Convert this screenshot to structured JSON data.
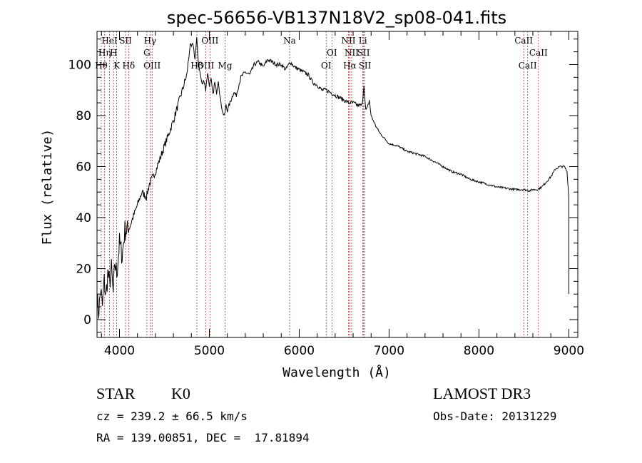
{
  "chart_data": {
    "type": "line",
    "title": "spec-56656-VB137N18V2_sp08-041.fits",
    "xlabel": "Wavelength (Å)",
    "ylabel": "Flux (relative)",
    "xlim": [
      3750,
      9100
    ],
    "ylim": [
      -7,
      113
    ],
    "xticks": [
      4000,
      5000,
      6000,
      7000,
      8000,
      9000
    ],
    "yticks": [
      0,
      20,
      40,
      60,
      80,
      100
    ],
    "x_tick_labels": [
      "4000",
      "5000",
      "6000",
      "7000",
      "8000",
      "9000"
    ],
    "y_tick_labels": [
      "0",
      "20",
      "40",
      "60",
      "80",
      "100"
    ],
    "series": [
      {
        "name": "flux",
        "x": [
          3750,
          3770,
          3790,
          3810,
          3830,
          3850,
          3870,
          3890,
          3910,
          3930,
          3950,
          3970,
          4000,
          4030,
          4060,
          4100,
          4150,
          4200,
          4250,
          4300,
          4330,
          4360,
          4400,
          4450,
          4500,
          4550,
          4600,
          4650,
          4700,
          4750,
          4780,
          4800,
          4820,
          4840,
          4860,
          4880,
          4900,
          4920,
          4940,
          4960,
          4980,
          5000,
          5020,
          5040,
          5060,
          5080,
          5100,
          5120,
          5150,
          5170,
          5185,
          5200,
          5230,
          5270,
          5300,
          5350,
          5400,
          5450,
          5500,
          5550,
          5600,
          5650,
          5700,
          5750,
          5800,
          5850,
          5900,
          5950,
          6000,
          6050,
          6100,
          6150,
          6200,
          6250,
          6300,
          6350,
          6400,
          6450,
          6500,
          6550,
          6600,
          6650,
          6700,
          6720,
          6740,
          6760,
          6780,
          6800,
          6850,
          6900,
          6950,
          7000,
          7100,
          7200,
          7300,
          7400,
          7500,
          7600,
          7700,
          7800,
          7900,
          8000,
          8100,
          8200,
          8300,
          8400,
          8500,
          8560,
          8600,
          8650,
          8700,
          8750,
          8800,
          8850,
          8900,
          8950,
          8980,
          9000,
          9000
        ],
        "y": [
          8,
          3,
          12,
          5,
          15,
          9,
          18,
          14,
          20,
          10,
          22,
          18,
          30,
          25,
          35,
          35,
          40,
          45,
          50,
          48,
          53,
          55,
          58,
          63,
          68,
          73,
          78,
          84,
          90,
          96,
          106,
          107,
          108,
          102,
          110,
          100,
          96,
          92,
          94,
          90,
          97,
          92,
          94,
          88,
          93,
          89,
          94,
          87,
          81,
          80,
          84,
          82,
          85,
          89,
          88,
          95,
          97,
          96,
          100,
          101,
          99,
          102,
          101,
          100,
          100,
          98,
          101,
          99,
          98,
          97,
          96,
          93,
          92,
          90,
          90,
          89,
          88,
          87,
          86,
          85,
          85,
          84,
          84,
          92,
          82,
          83,
          86,
          80,
          76,
          73,
          71,
          69,
          68,
          66,
          65,
          64,
          62,
          60,
          58,
          57,
          55,
          54,
          53,
          52,
          51.5,
          51,
          51,
          50.5,
          51,
          51,
          52,
          54,
          56,
          59,
          60,
          60,
          58,
          48,
          10
        ]
      }
    ],
    "spectral_lines": [
      {
        "label": "Hθ",
        "wavelength": 3797,
        "row": 3
      },
      {
        "label": "Hη",
        "wavelength": 3835,
        "row": 1
      },
      {
        "label": "HeI",
        "wavelength": 3889,
        "row": 0
      },
      {
        "label": "H",
        "wavelength": 3934,
        "row": 1
      },
      {
        "label": "K",
        "wavelength": 3969,
        "row": 2
      },
      {
        "label": "SII",
        "wavelength": 4068,
        "row": 0
      },
      {
        "label": "Hδ",
        "wavelength": 4102,
        "row": 3
      },
      {
        "label": "Hγ",
        "wavelength": 4340,
        "row": 0
      },
      {
        "label": "G",
        "wavelength": 4305,
        "row": 1
      },
      {
        "label": "OIII",
        "wavelength": 4363,
        "row": 3
      },
      {
        "label": "Hβ",
        "wavelength": 4861,
        "row": 2
      },
      {
        "label": "OIII",
        "wavelength": 4959,
        "row": 3
      },
      {
        "label": "OIII",
        "wavelength": 5007,
        "row": 0
      },
      {
        "label": "Mg",
        "wavelength": 5175,
        "row": 2
      },
      {
        "label": "Na",
        "wavelength": 5893,
        "row": 0
      },
      {
        "label": "OI",
        "wavelength": 6300,
        "row": 3
      },
      {
        "label": "OI",
        "wavelength": 6364,
        "row": 1
      },
      {
        "label": "NII",
        "wavelength": 6548,
        "row": 0
      },
      {
        "label": "Hα",
        "wavelength": 6563,
        "row": 3
      },
      {
        "label": "NII",
        "wavelength": 6584,
        "row": 1
      },
      {
        "label": "Li",
        "wavelength": 6708,
        "row": 0
      },
      {
        "label": "SII",
        "wavelength": 6716,
        "row": 1
      },
      {
        "label": "SII",
        "wavelength": 6731,
        "row": 3
      },
      {
        "label": "CaII",
        "wavelength": 8498,
        "row": 0
      },
      {
        "label": "CaII",
        "wavelength": 8542,
        "row": 3
      },
      {
        "label": "CaII",
        "wavelength": 8662,
        "row": 1
      }
    ]
  },
  "info": {
    "class": "STAR",
    "subclass": "K0",
    "survey": "LAMOST DR3",
    "cz": "cz = 239.2 ± 66.5 km/s",
    "obs_date": "Obs-Date: 20131229",
    "coords": "RA = 139.00851, DEC =  17.81894"
  },
  "colors": {
    "line": "#000000",
    "marker": "#b03030",
    "frame": "#000000"
  }
}
